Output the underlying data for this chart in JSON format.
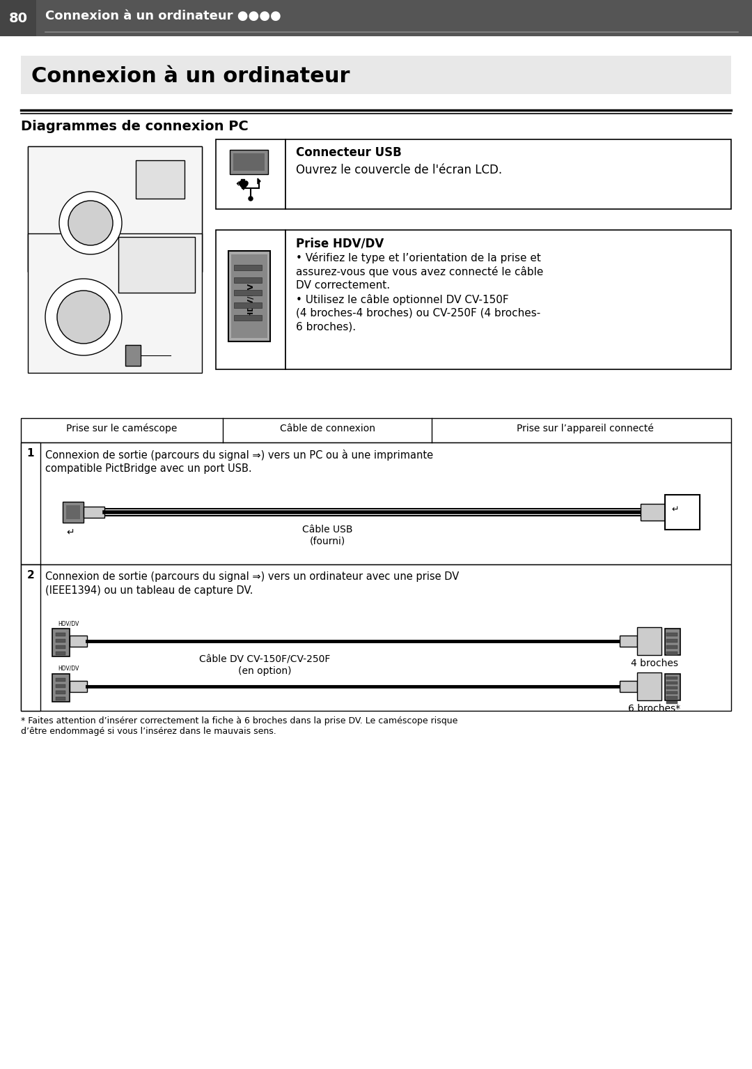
{
  "page_num": "80",
  "header_text": "Connexion à un ordinateur ●●●●",
  "header_bg": "#555555",
  "header_text_color": "#ffffff",
  "page_bg": "#ffffff",
  "title": "Connexion à un ordinateur",
  "title_bg": "#e8e8e8",
  "section_title": "Diagrammes de connexion PC",
  "usb_box_title": "Connecteur USB",
  "usb_box_text": "Ouvrez le couvercle de l'écran LCD.",
  "hdv_box_title": "Prise HDV/DV",
  "hdv_box_text1": "• Vérifiez le type et l’orientation de la prise et",
  "hdv_box_text2": "assurez-vous que vous avez connecté le câble",
  "hdv_box_text3": "DV correctement.",
  "hdv_box_text4": "• Utilisez le câble optionnel DV CV-150F",
  "hdv_box_text5": "(4 broches-4 broches) ou CV-250F (4 broches-",
  "hdv_box_text6": "6 broches).",
  "table_col1": "Prise sur le caméscope",
  "table_col2": "Câble de connexion",
  "table_col3": "Prise sur l’appareil connecté",
  "row1_num": "1",
  "row1_text1": "Connexion de sortie (parcours du signal ⇒) vers un PC ou à une imprimante",
  "row1_text2": "compatible PictBridge avec un port USB.",
  "row1_cable": "Câble USB\n(fourni)",
  "row2_num": "2",
  "row2_text1": "Connexion de sortie (parcours du signal ⇒) vers un ordinateur avec une prise DV",
  "row2_text2": "(IEEE1394) ou un tableau de capture DV.",
  "row2_cable": "Câble DV CV-150F/CV-250F\n(en option)",
  "row2_label1": "4 broches",
  "row2_label2": "6 broches*",
  "footnote": "* Faites attention d’insérer correctement la fiche à 6 broches dans la prise DV. Le caméscope risque\nd’être endomagé si vous l’insérez dans le mauvais sens.",
  "footnote_full": "* Faites attention d’insérer correctement la fiche à 6 broches dans la prise DV. Le caméscope risque\nd’être endommagé si vous l’insérez dans le mauvais sens."
}
